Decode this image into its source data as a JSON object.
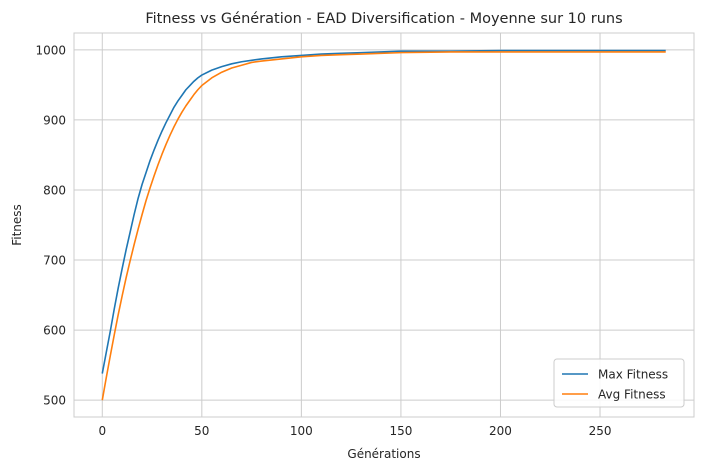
{
  "chart_data": {
    "type": "line",
    "title": "Fitness vs Génération - EAD Diversification - Moyenne sur 10 runs",
    "xlabel": "Générations",
    "ylabel": "Fitness",
    "xlim": [
      -14.2,
      297.2
    ],
    "ylim": [
      476,
      1024
    ],
    "xticks": [
      0,
      50,
      100,
      150,
      200,
      250
    ],
    "yticks": [
      500,
      600,
      700,
      800,
      900,
      1000
    ],
    "grid": true,
    "legend_position": "lower-right",
    "series": [
      {
        "name": "Max Fitness",
        "color": "#1f77b4",
        "x": [
          0,
          2,
          4,
          6,
          8,
          10,
          12,
          14,
          16,
          18,
          20,
          22,
          24,
          26,
          28,
          30,
          32,
          34,
          36,
          38,
          40,
          42,
          44,
          46,
          48,
          50,
          55,
          60,
          65,
          70,
          75,
          80,
          90,
          100,
          110,
          120,
          130,
          140,
          150,
          175,
          200,
          225,
          250,
          275,
          283
        ],
        "y": [
          538,
          568,
          598,
          630,
          660,
          688,
          715,
          740,
          765,
          788,
          808,
          825,
          842,
          857,
          871,
          884,
          896,
          907,
          918,
          927,
          935,
          943,
          949,
          955,
          960,
          964,
          971,
          976,
          980,
          983,
          985,
          987,
          990,
          992,
          994,
          995,
          996,
          997,
          998,
          998,
          999,
          999,
          999,
          999,
          999
        ]
      },
      {
        "name": "Avg Fitness",
        "color": "#ff7f0e",
        "x": [
          0,
          2,
          4,
          6,
          8,
          10,
          12,
          14,
          16,
          18,
          20,
          22,
          24,
          26,
          28,
          30,
          32,
          34,
          36,
          38,
          40,
          42,
          44,
          46,
          48,
          50,
          55,
          60,
          65,
          70,
          75,
          80,
          90,
          100,
          110,
          120,
          130,
          140,
          150,
          175,
          200,
          225,
          250,
          275,
          283
        ],
        "y": [
          500,
          532,
          563,
          593,
          622,
          649,
          675,
          699,
          722,
          744,
          765,
          785,
          803,
          820,
          836,
          851,
          865,
          878,
          890,
          901,
          911,
          920,
          928,
          936,
          943,
          949,
          960,
          968,
          974,
          978,
          982,
          984,
          987,
          990,
          992,
          993,
          994,
          995,
          996,
          997,
          997,
          997,
          997,
          997,
          997
        ]
      }
    ]
  }
}
